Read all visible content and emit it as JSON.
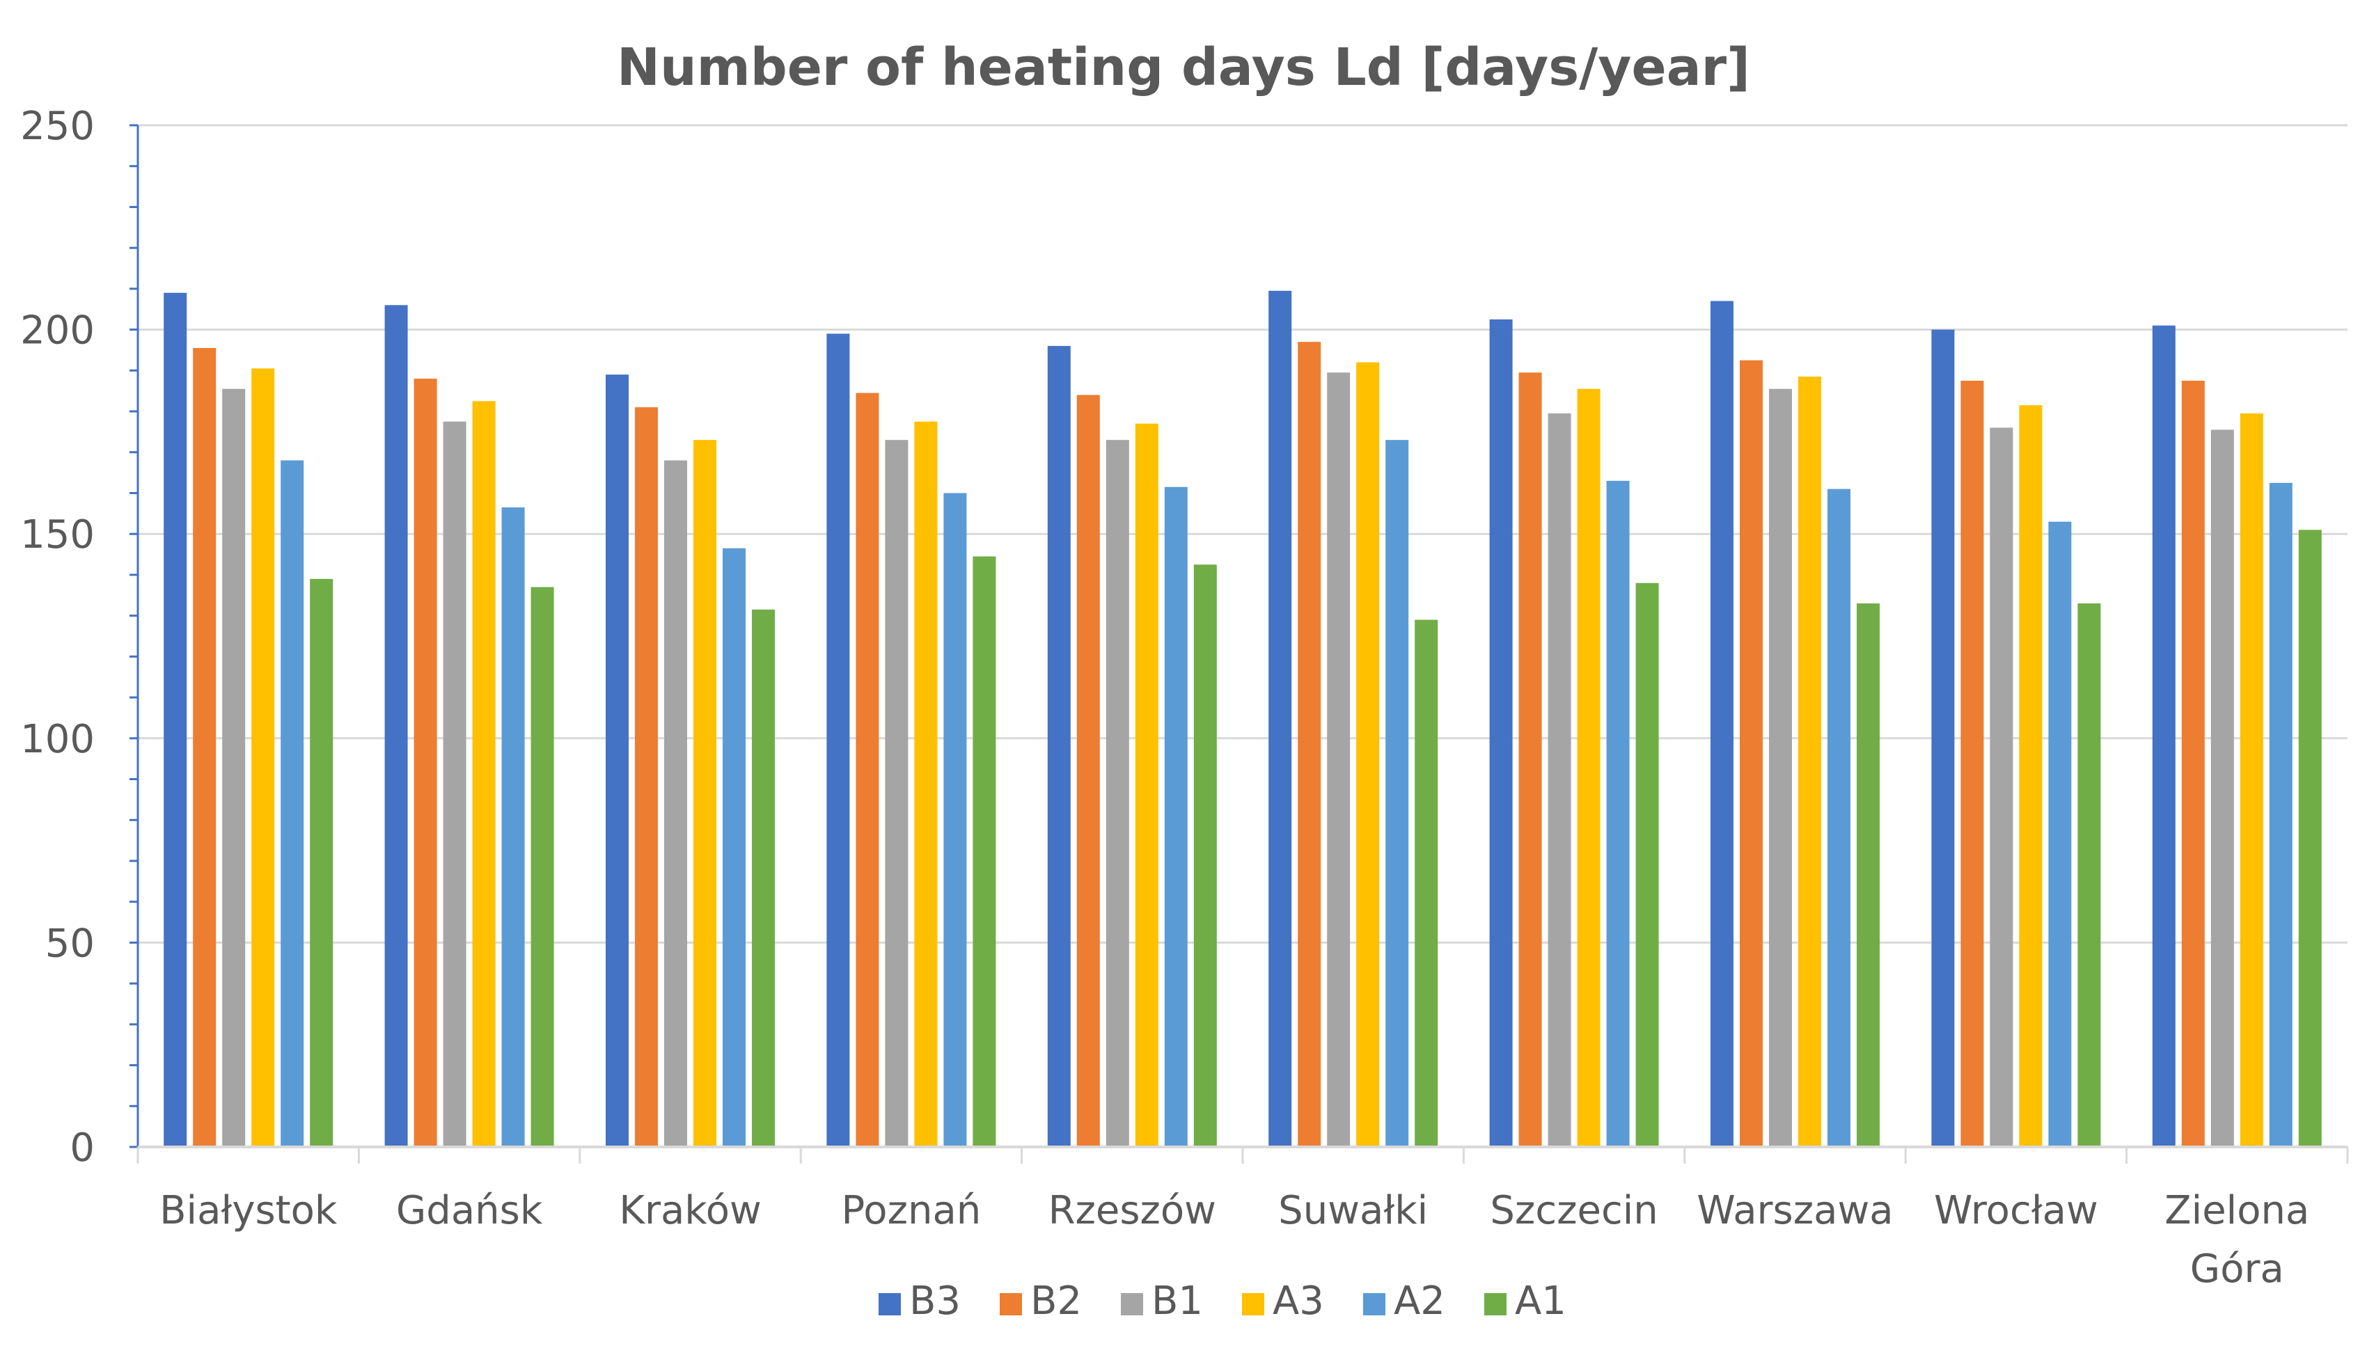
{
  "chart_data": {
    "type": "bar",
    "title": "Number of heating days Ld [days/year]",
    "xlabel": "",
    "ylabel": "",
    "ylim": [
      0,
      250
    ],
    "yticks": [
      0,
      50,
      100,
      150,
      200,
      250
    ],
    "grid": true,
    "legend_position": "bottom",
    "categories": [
      "Białystok",
      "Gdańsk",
      "Kraków",
      "Poznań",
      "Rzeszów",
      "Suwałki",
      "Szczecin",
      "Warszawa",
      "Wrocław",
      "Zielona Góra"
    ],
    "category_lines": [
      [
        "Białystok"
      ],
      [
        "Gdańsk"
      ],
      [
        "Kraków"
      ],
      [
        "Poznań"
      ],
      [
        "Rzeszów"
      ],
      [
        "Suwałki"
      ],
      [
        "Szczecin"
      ],
      [
        "Warszawa"
      ],
      [
        "Wrocław"
      ],
      [
        "Zielona",
        "Góra"
      ]
    ],
    "series": [
      {
        "name": "B3",
        "color": "#4472C4",
        "values": [
          209,
          206,
          189,
          199,
          196,
          209.5,
          202.5,
          207,
          200,
          201
        ]
      },
      {
        "name": "B2",
        "color": "#ED7D31",
        "values": [
          195.5,
          188,
          181,
          184.5,
          184,
          197,
          189.5,
          192.5,
          187.5,
          187.5
        ]
      },
      {
        "name": "B1",
        "color": "#A5A5A5",
        "values": [
          185.5,
          177.5,
          168,
          173,
          173,
          189.5,
          179.5,
          185.5,
          176,
          175.5
        ]
      },
      {
        "name": "A3",
        "color": "#FFC000",
        "values": [
          190.5,
          182.5,
          173,
          177.5,
          177,
          192,
          185.5,
          188.5,
          181.5,
          179.5
        ]
      },
      {
        "name": "A2",
        "color": "#5B9BD5",
        "values": [
          168,
          156.5,
          146.5,
          160,
          161.5,
          173,
          163,
          161,
          153,
          162.5
        ]
      },
      {
        "name": "A1",
        "color": "#70AD47",
        "values": [
          139,
          137,
          131.5,
          144.5,
          142.5,
          129,
          138,
          133,
          133,
          151
        ]
      }
    ],
    "colors": {
      "axis": "#4472C4",
      "grid": "#D9D9D9",
      "text": "#595959"
    }
  }
}
